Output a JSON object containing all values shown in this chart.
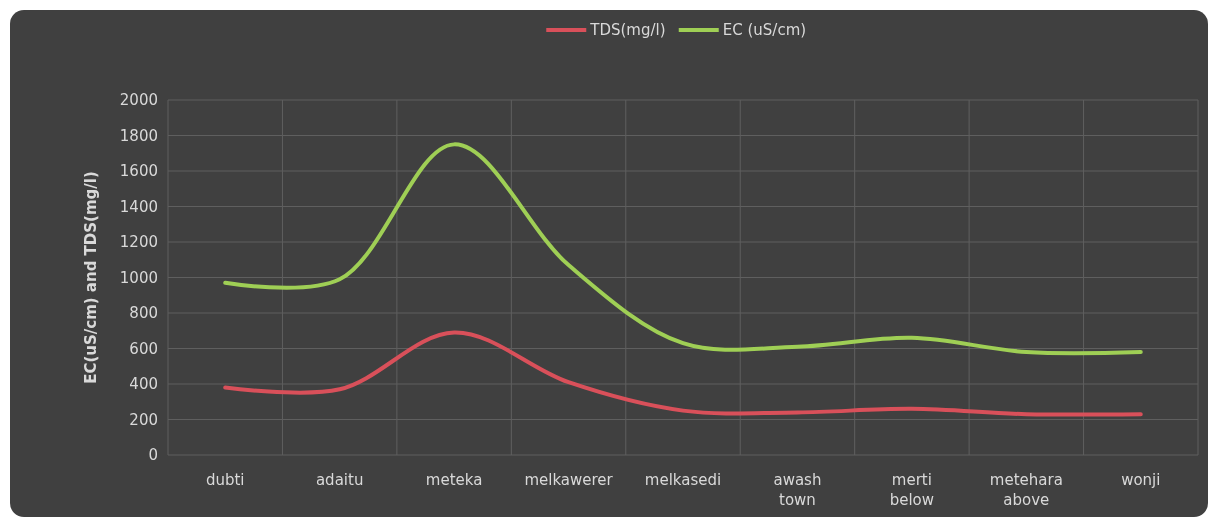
{
  "chart_data": {
    "type": "line",
    "ylabel": "EC(uS/cm) and TDS(mg/l)",
    "categories": [
      "dubti",
      "adaitu",
      "meteka",
      "melkawerer",
      "melkasedi",
      "awash town",
      "merti below",
      "metehara above",
      "wonji"
    ],
    "series": [
      {
        "name": "TDS(mg/l)",
        "color": "#d9505a",
        "values": [
          380,
          370,
          690,
          410,
          250,
          240,
          260,
          230,
          230
        ]
      },
      {
        "name": "EC (uS/cm)",
        "color": "#9fcf55",
        "values": [
          970,
          990,
          1750,
          1070,
          630,
          610,
          660,
          580,
          580
        ]
      }
    ],
    "ylim": [
      0,
      2000
    ],
    "yticks": [
      0,
      200,
      400,
      600,
      800,
      1000,
      1200,
      1400,
      1600,
      1800,
      2000
    ],
    "grid": true,
    "legend": "top",
    "marker": "none",
    "line_style": "solid"
  }
}
